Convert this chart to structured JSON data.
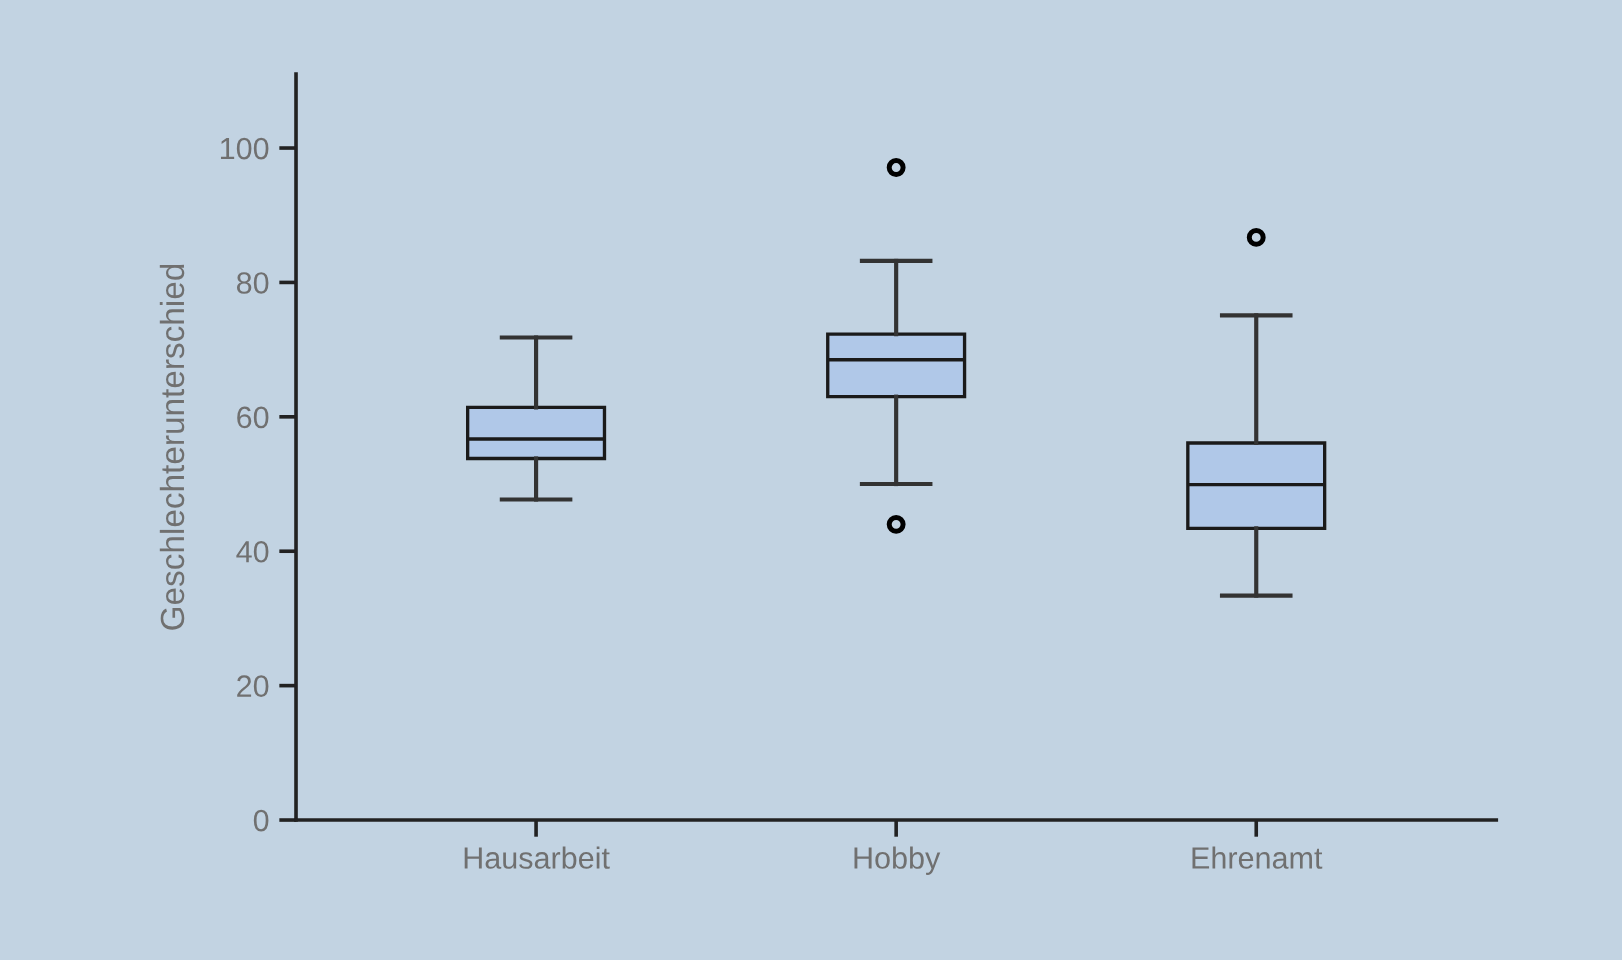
{
  "chart_data": {
    "type": "box",
    "ylabel": "Geschlechterunterschied",
    "categories": [
      "Hausarbeit",
      "Hobby",
      "Ehrenamt"
    ],
    "boxes": [
      {
        "low": 47.7,
        "q1": 53.8,
        "median": 56.7,
        "q3": 61.4,
        "high": 71.8
      },
      {
        "low": 50.0,
        "q1": 63.0,
        "median": 68.5,
        "q3": 72.3,
        "high": 83.2,
        "outliers": [
          97.1,
          44.0
        ]
      },
      {
        "low": 33.4,
        "q1": 43.4,
        "median": 49.9,
        "q3": 56.1,
        "high": 75.1,
        "outliers": [
          86.7
        ]
      }
    ],
    "color": "#b0c8e8",
    "ylim": [
      0,
      111
    ],
    "yticks": [
      0,
      20,
      40,
      60,
      80,
      100
    ],
    "grid": false,
    "legend": false
  }
}
